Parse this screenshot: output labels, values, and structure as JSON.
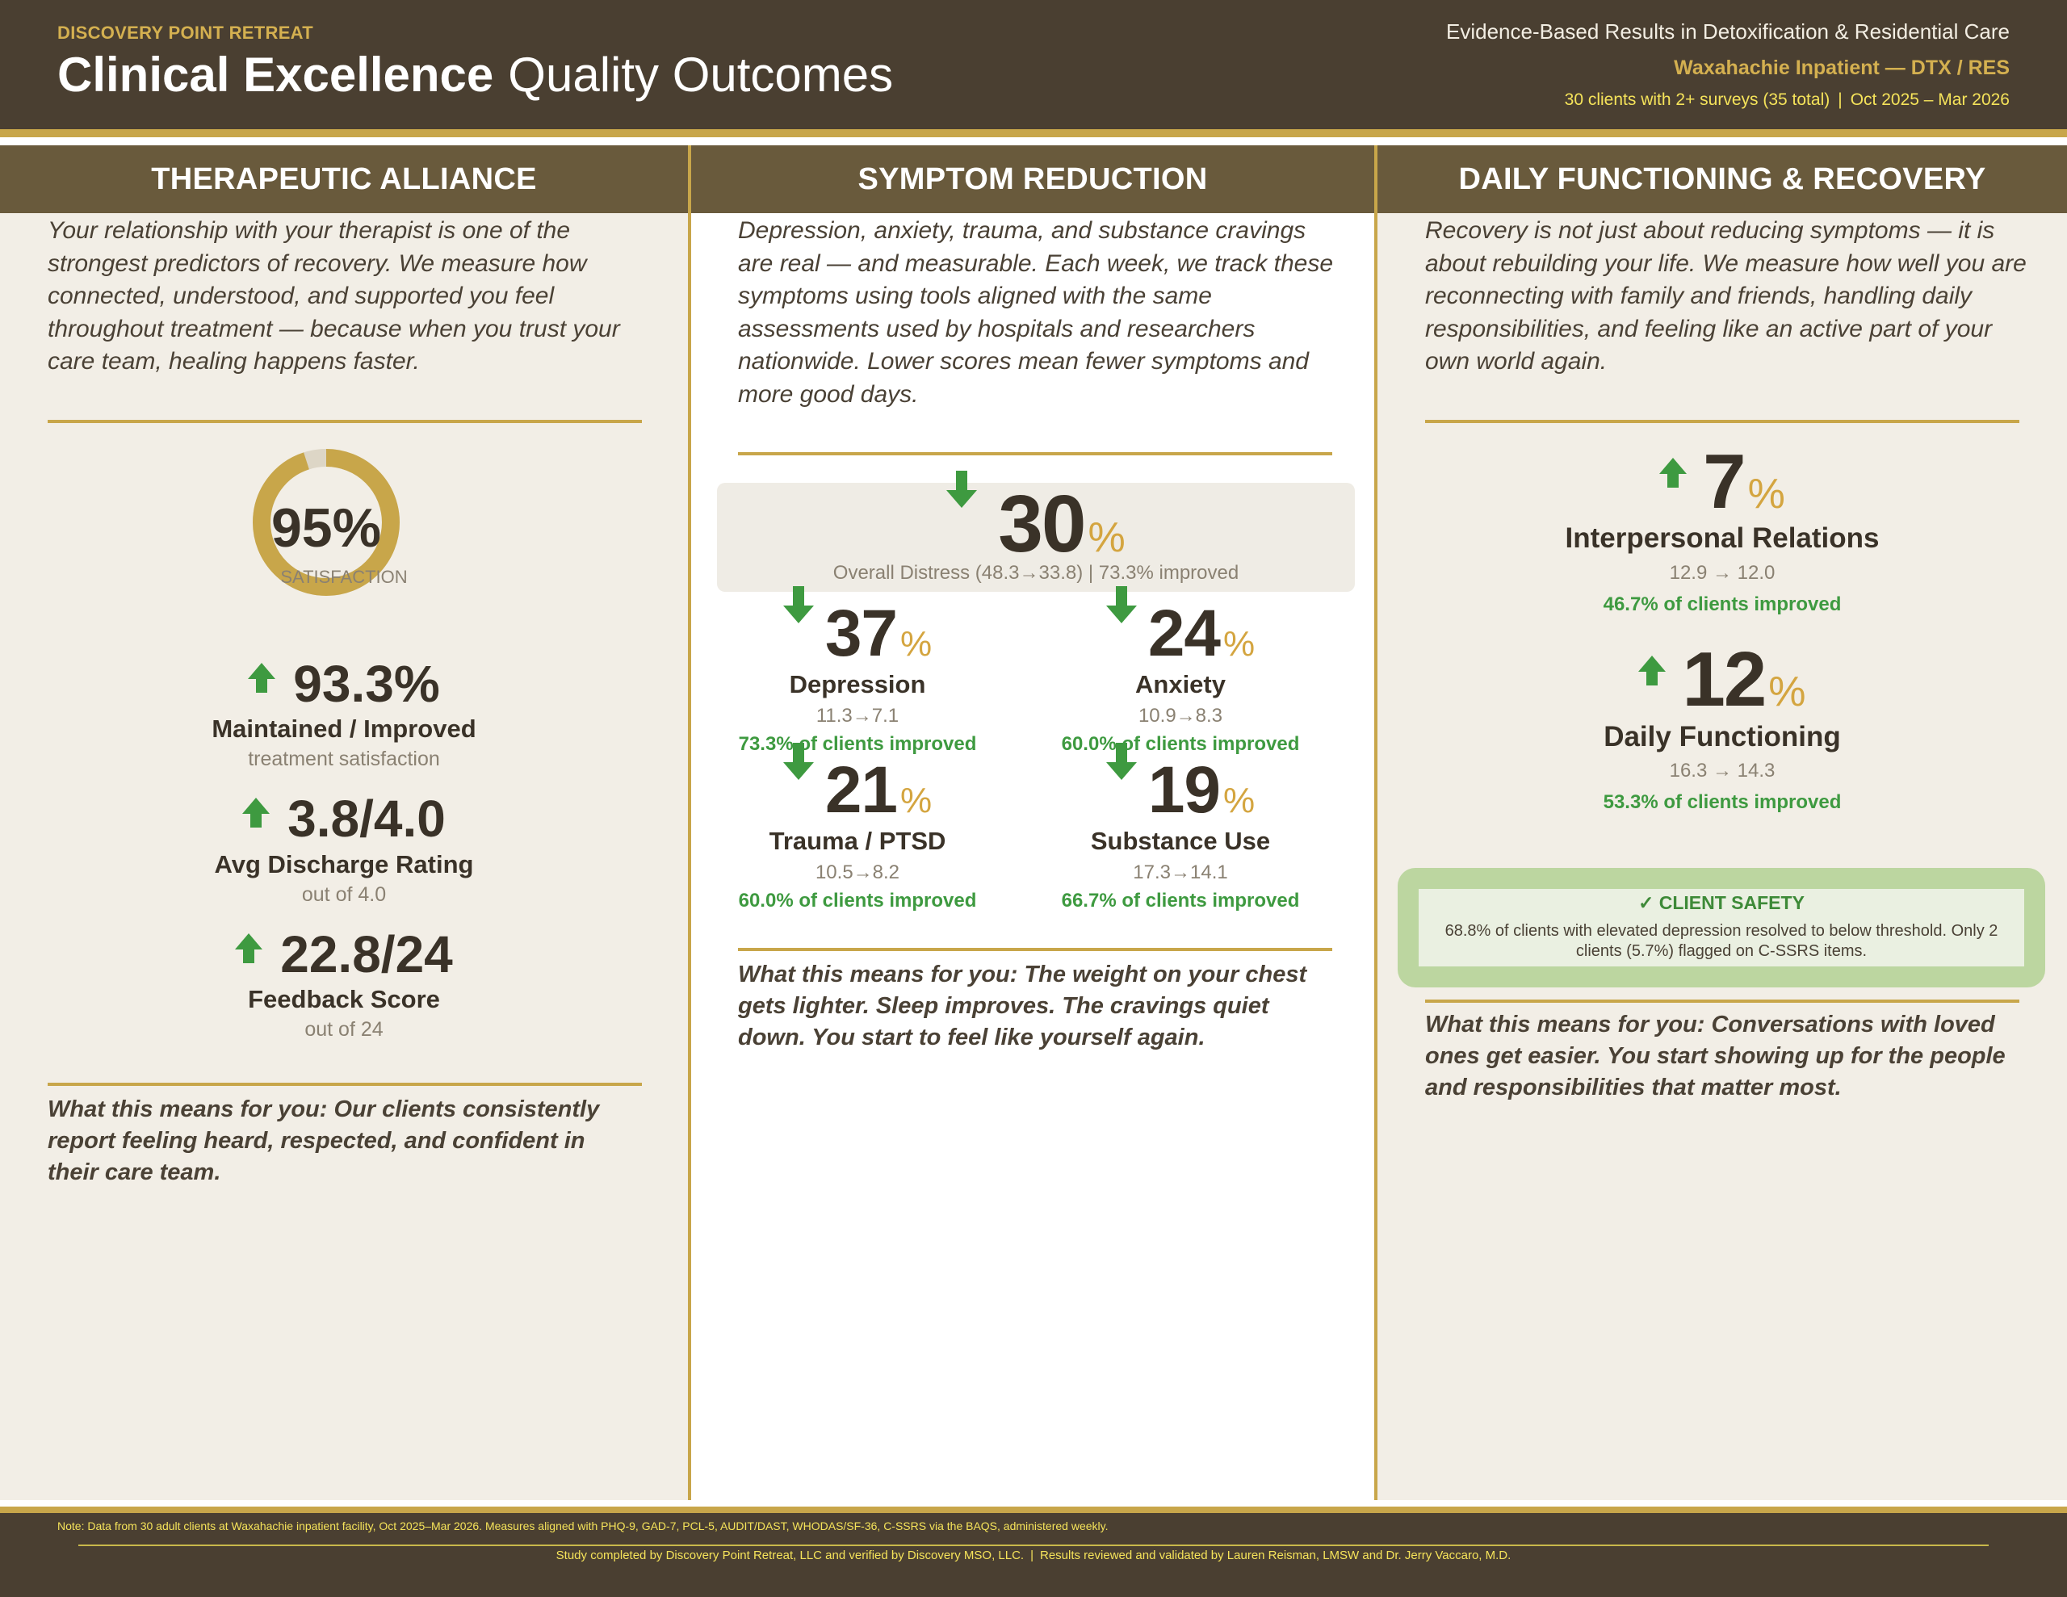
{
  "header": {
    "brand": "DISCOVERY POINT RETREAT",
    "title_bold": "Clinical Excellence",
    "title_light": "Quality Outcomes",
    "tagline": "Evidence-Based Results in Detoxification & Residential Care",
    "facility": "Waxahachie Inpatient — DTX / RES",
    "sample": "30 clients with 2+ surveys (35 total)",
    "period": "Oct 2025 – Mar 2026",
    "separator": "|"
  },
  "therapeutic_alliance": {
    "heading": "THERAPEUTIC ALLIANCE",
    "intro": "Your relationship with your therapist is one of the strongest predictors of recovery. We measure how connected, understood, and supported you feel throughout treatment — because when you trust your care team, healing happens faster.",
    "satisfaction": {
      "value": "95%",
      "label": "SATISFACTION",
      "fraction": 0.95
    },
    "metrics": [
      {
        "value": "93.3%",
        "title": "Maintained / Improved",
        "sub": "treatment satisfaction"
      },
      {
        "value": "3.8/4.0",
        "title": "Avg Discharge Rating",
        "sub": "out of 4.0"
      },
      {
        "value": "22.8/24",
        "title": "Feedback Score",
        "sub": "out of 24"
      }
    ],
    "meaning": "What this means for you: Our clients consistently report feeling heard, respected, and confident in their care team."
  },
  "symptom_reduction": {
    "heading": "SYMPTOM REDUCTION",
    "intro": "Depression, anxiety, trauma, and substance cravings are real — and measurable. Each week, we track these symptoms using tools aligned with the same assessments used by hospitals and researchers nationwide. Lower scores mean fewer symptoms and more good days.",
    "overall": {
      "value": "30",
      "sign": "%",
      "detail": "Overall Distress (48.3→33.8) | 73.3% improved"
    },
    "items": [
      {
        "value": "37",
        "sign": "%",
        "title": "Depression",
        "range": "11.3→7.1",
        "improved": "73.3% of clients improved"
      },
      {
        "value": "24",
        "sign": "%",
        "title": "Anxiety",
        "range": "10.9→8.3",
        "improved": "60.0% of clients improved"
      },
      {
        "value": "21",
        "sign": "%",
        "title": "Trauma / PTSD",
        "range": "10.5→8.2",
        "improved": "60.0% of clients improved"
      },
      {
        "value": "19",
        "sign": "%",
        "title": "Substance Use",
        "range": "17.3→14.1",
        "improved": "66.7% of clients improved"
      }
    ],
    "meaning": "What this means for you: The weight on your chest gets lighter. Sleep improves. The cravings quiet down. You start to feel like yourself again."
  },
  "daily_functioning": {
    "heading": "DAILY FUNCTIONING & RECOVERY",
    "intro": "Recovery is not just about reducing symptoms — it is about rebuilding your life. We measure how well you are reconnecting with family and friends, handling daily responsibilities, and feeling like an active part of your own world again.",
    "items": [
      {
        "value": "7",
        "sign": "%",
        "title": "Interpersonal Relations",
        "range": "12.9 → 12.0",
        "improved": "46.7% of clients improved"
      },
      {
        "value": "12",
        "sign": "%",
        "title": "Daily Functioning",
        "range": "16.3 → 14.3",
        "improved": "53.3% of clients improved"
      }
    ],
    "safety": {
      "title": "✓  CLIENT SAFETY",
      "text": "68.8% of clients with elevated depression resolved to below threshold. Only 2 clients (5.7%) flagged on C-SSRS items."
    },
    "meaning": "What this means for you: Conversations with loved ones get easier. You start showing up for the people and responsibilities that matter most."
  },
  "footer": {
    "note": "Note: Data from 30 adult clients at Waxahachie inpatient facility, Oct 2025–Mar 2026. Measures aligned with PHQ-9, GAD-7, PCL-5, AUDIT/DAST, WHODAS/SF-36, C-SSRS via the BAQS, administered weekly.",
    "credit_study": "Study completed by Discovery Point Retreat, LLC and verified by Discovery MSO, LLC.",
    "credit_sep": "|",
    "credit_review": "Results reviewed and validated by Lauren Reisman, LMSW and Dr. Jerry Vaccaro, M.D."
  },
  "colors": {
    "header_bg": "#4a3f31",
    "gold": "#c8a64a",
    "section_header": "#695a3c",
    "panel_bg": "#f2eee6",
    "green": "#3e9a40",
    "safety_bg": "#bcd6a0"
  }
}
